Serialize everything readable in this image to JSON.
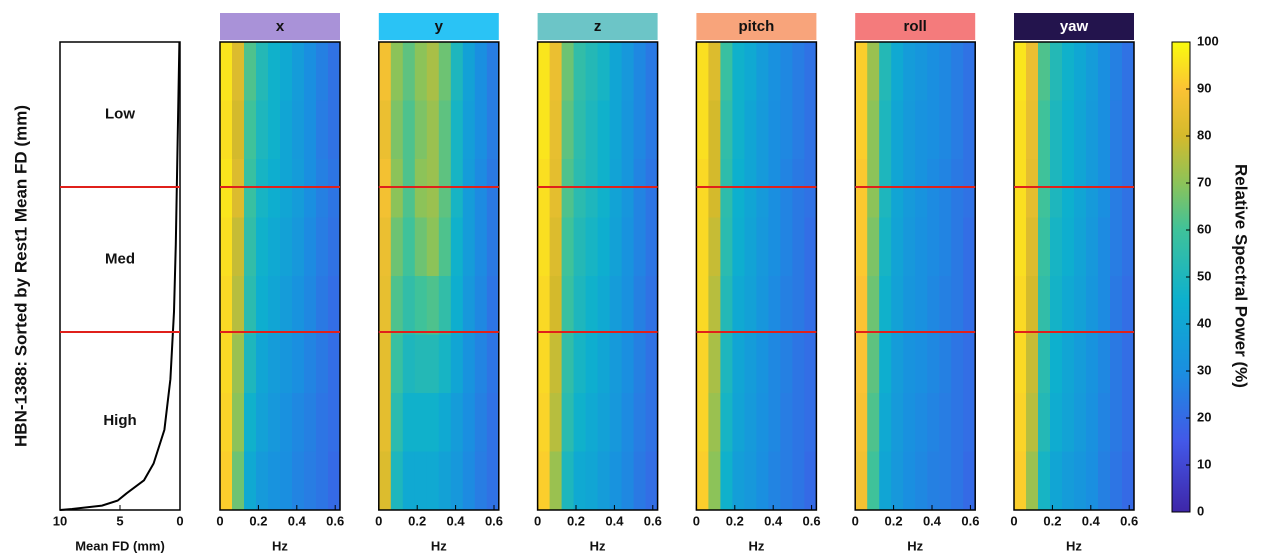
{
  "chart_data": {
    "type": "heatmap",
    "ylabel": "HBN-1388: Sorted by Rest1 Mean FD (mm)",
    "ylim": [
      0,
      1388
    ],
    "group_boundaries": [
      430,
      860
    ],
    "groups": [
      "Low",
      "Med",
      "High"
    ],
    "boundary_color": "#e0201b",
    "fd_panel": {
      "xlabel": "Mean FD (mm)",
      "xlim": [
        10,
        0
      ],
      "xticks": [
        10,
        5,
        0
      ],
      "rank": [
        0,
        300,
        600,
        800,
        1000,
        1150,
        1250,
        1300,
        1340,
        1360,
        1375,
        1385,
        1388
      ],
      "fd": [
        0.05,
        0.2,
        0.35,
        0.5,
        0.8,
        1.3,
        2.2,
        3,
        4.5,
        5.2,
        6.5,
        9,
        10
      ]
    },
    "xlabel": "Hz",
    "xlim": [
      0,
      0.625
    ],
    "xticks": [
      0,
      0.2,
      0.4,
      0.6
    ],
    "panels": [
      {
        "title": "x",
        "color": "#a992d8",
        "z": [
          [
            96,
            82,
            62,
            52,
            46,
            42,
            36,
            30,
            26,
            22
          ],
          [
            95,
            80,
            60,
            50,
            46,
            40,
            35,
            30,
            25,
            22
          ],
          [
            96,
            82,
            58,
            48,
            44,
            40,
            36,
            30,
            26,
            23
          ],
          [
            95,
            78,
            56,
            46,
            42,
            38,
            34,
            29,
            25,
            22
          ],
          [
            94,
            76,
            54,
            44,
            40,
            36,
            32,
            28,
            24,
            21
          ],
          [
            94,
            72,
            50,
            40,
            36,
            33,
            30,
            27,
            24,
            21
          ],
          [
            93,
            70,
            46,
            38,
            34,
            31,
            28,
            26,
            23,
            21
          ],
          [
            92,
            66,
            42,
            35,
            32,
            30,
            27,
            25,
            23,
            20
          ]
        ]
      },
      {
        "title": "y",
        "color": "#2ac3f5",
        "z": [
          [
            88,
            70,
            64,
            70,
            74,
            66,
            50,
            38,
            30,
            25
          ],
          [
            86,
            68,
            62,
            68,
            72,
            64,
            48,
            37,
            30,
            25
          ],
          [
            88,
            70,
            62,
            70,
            72,
            64,
            48,
            36,
            29,
            24
          ],
          [
            86,
            66,
            60,
            66,
            70,
            62,
            46,
            36,
            29,
            24
          ],
          [
            85,
            62,
            56,
            60,
            62,
            56,
            44,
            34,
            28,
            23
          ],
          [
            84,
            58,
            50,
            52,
            52,
            48,
            40,
            32,
            27,
            23
          ],
          [
            84,
            54,
            46,
            46,
            46,
            42,
            36,
            30,
            26,
            22
          ],
          [
            82,
            50,
            42,
            42,
            42,
            38,
            34,
            29,
            25,
            22
          ]
        ]
      },
      {
        "title": "z",
        "color": "#6cc5c7",
        "z": [
          [
            96,
            86,
            66,
            56,
            52,
            48,
            40,
            34,
            28,
            24
          ],
          [
            96,
            85,
            64,
            55,
            50,
            46,
            40,
            33,
            28,
            24
          ],
          [
            95,
            84,
            62,
            54,
            50,
            46,
            39,
            33,
            27,
            23
          ],
          [
            95,
            82,
            60,
            52,
            48,
            44,
            38,
            32,
            27,
            23
          ],
          [
            94,
            80,
            58,
            50,
            46,
            42,
            36,
            31,
            26,
            22
          ],
          [
            94,
            78,
            56,
            48,
            44,
            40,
            35,
            30,
            26,
            22
          ],
          [
            93,
            76,
            54,
            46,
            42,
            38,
            34,
            29,
            25,
            22
          ],
          [
            92,
            72,
            50,
            42,
            40,
            36,
            32,
            28,
            24,
            21
          ]
        ]
      },
      {
        "title": "pitch",
        "color": "#f8a47b",
        "z": [
          [
            95,
            82,
            58,
            46,
            42,
            36,
            31,
            28,
            25,
            22
          ],
          [
            95,
            80,
            56,
            46,
            40,
            35,
            30,
            28,
            25,
            22
          ],
          [
            94,
            80,
            55,
            45,
            40,
            35,
            30,
            27,
            24,
            22
          ],
          [
            94,
            78,
            54,
            44,
            39,
            34,
            30,
            27,
            24,
            21
          ],
          [
            94,
            76,
            52,
            42,
            38,
            33,
            29,
            26,
            24,
            21
          ],
          [
            93,
            74,
            50,
            40,
            36,
            32,
            28,
            26,
            23,
            21
          ],
          [
            93,
            72,
            48,
            39,
            35,
            31,
            28,
            25,
            23,
            21
          ],
          [
            92,
            70,
            46,
            37,
            34,
            30,
            27,
            25,
            23,
            20
          ]
        ]
      },
      {
        "title": "roll",
        "color": "#f47b7c",
        "z": [
          [
            92,
            72,
            52,
            42,
            36,
            33,
            30,
            28,
            25,
            22
          ],
          [
            92,
            70,
            50,
            40,
            35,
            32,
            30,
            28,
            25,
            22
          ],
          [
            91,
            70,
            50,
            40,
            35,
            32,
            29,
            27,
            24,
            22
          ],
          [
            91,
            68,
            48,
            39,
            34,
            31,
            29,
            27,
            24,
            21
          ],
          [
            90,
            66,
            46,
            38,
            33,
            31,
            28,
            26,
            24,
            21
          ],
          [
            90,
            64,
            44,
            36,
            32,
            30,
            28,
            26,
            23,
            21
          ],
          [
            89,
            62,
            42,
            35,
            31,
            29,
            27,
            25,
            23,
            21
          ],
          [
            88,
            60,
            40,
            34,
            30,
            28,
            26,
            25,
            23,
            20
          ]
        ]
      },
      {
        "title": "yaw",
        "color": "#23144d",
        "z": [
          [
            96,
            86,
            62,
            52,
            46,
            41,
            36,
            30,
            26,
            22
          ],
          [
            95,
            85,
            60,
            50,
            45,
            40,
            35,
            30,
            25,
            22
          ],
          [
            95,
            84,
            60,
            50,
            45,
            40,
            35,
            30,
            25,
            22
          ],
          [
            95,
            82,
            58,
            48,
            44,
            39,
            34,
            29,
            25,
            22
          ],
          [
            94,
            80,
            56,
            47,
            42,
            38,
            33,
            29,
            24,
            21
          ],
          [
            94,
            78,
            54,
            45,
            40,
            36,
            32,
            28,
            24,
            21
          ],
          [
            93,
            76,
            52,
            43,
            39,
            35,
            31,
            27,
            24,
            21
          ],
          [
            92,
            72,
            48,
            40,
            36,
            33,
            30,
            26,
            23,
            20
          ]
        ]
      }
    ],
    "colorbar": {
      "label": "Relative Spectral Power (%)",
      "lim": [
        0,
        100
      ],
      "ticks": [
        0,
        10,
        20,
        30,
        40,
        50,
        60,
        70,
        80,
        90,
        100
      ]
    }
  }
}
